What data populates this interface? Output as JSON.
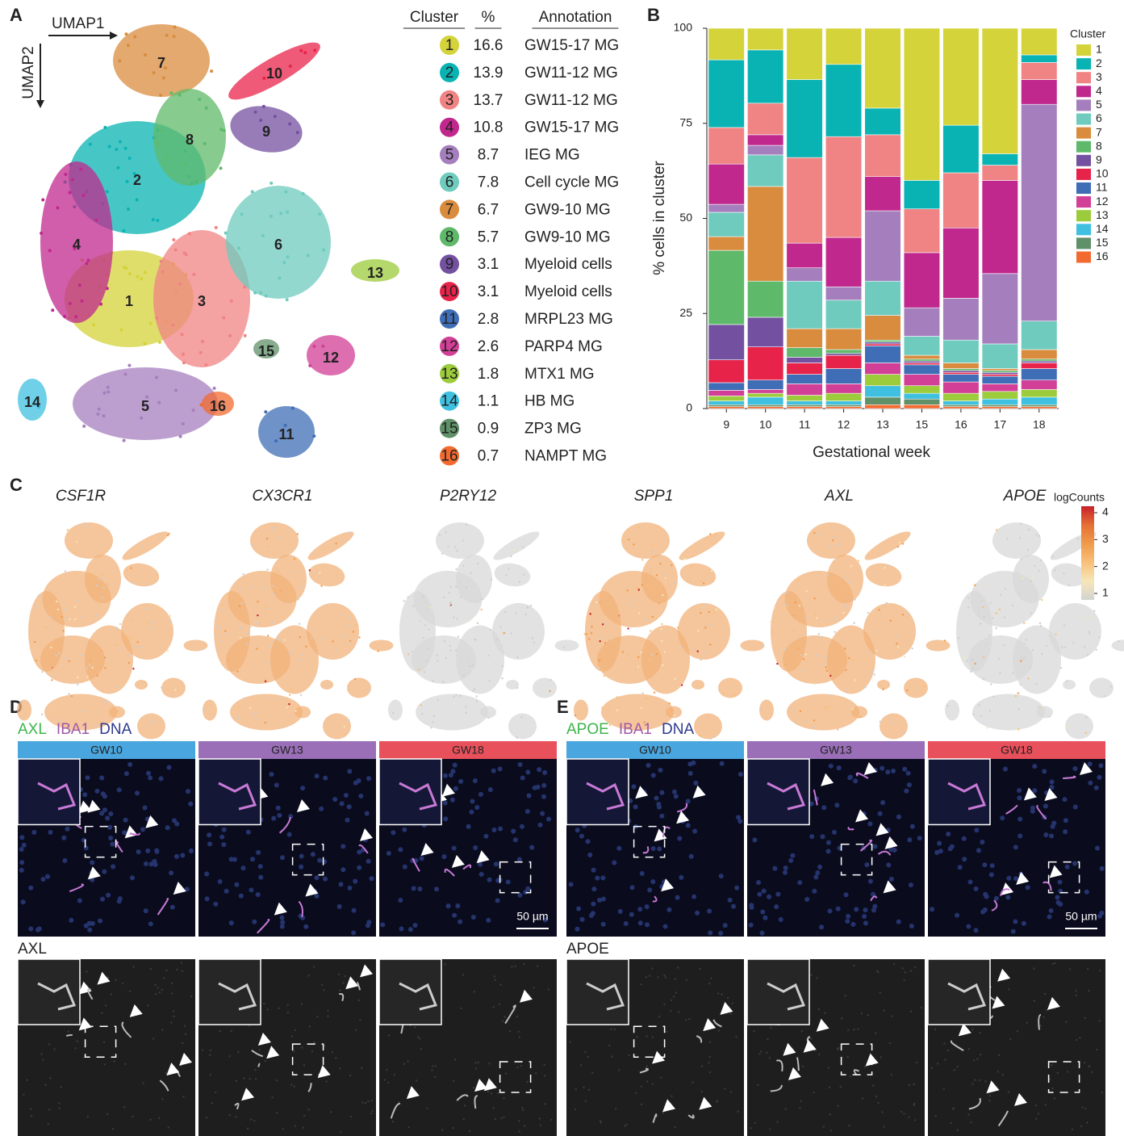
{
  "panel_labels": [
    "A",
    "B",
    "C",
    "D",
    "E"
  ],
  "umap": {
    "axis_x": "UMAP1",
    "axis_y": "UMAP2",
    "cluster_labels": [
      "7",
      "10",
      "9",
      "8",
      "2",
      "4",
      "6",
      "13",
      "1",
      "3",
      "15",
      "12",
      "5",
      "16",
      "14",
      "11"
    ]
  },
  "cluster_table": {
    "headers": [
      "Cluster",
      "%",
      "Annotation"
    ],
    "rows": [
      [
        1,
        16.6,
        "GW15-17 MG"
      ],
      [
        2,
        13.9,
        "GW11-12 MG"
      ],
      [
        3,
        13.7,
        "GW11-12 MG"
      ],
      [
        4,
        10.8,
        "GW15-17 MG"
      ],
      [
        5,
        8.7,
        "IEG MG"
      ],
      [
        6,
        7.8,
        "Cell cycle MG"
      ],
      [
        7,
        6.7,
        "GW9-10 MG"
      ],
      [
        8,
        5.7,
        "GW9-10 MG"
      ],
      [
        9,
        3.1,
        "Myeloid cells"
      ],
      [
        10,
        3.1,
        "Myeloid cells"
      ],
      [
        11,
        2.8,
        "MRPL23 MG"
      ],
      [
        12,
        2.6,
        "PARP4 MG"
      ],
      [
        13,
        1.8,
        "MTX1 MG"
      ],
      [
        14,
        1.1,
        "HB MG"
      ],
      [
        15,
        0.9,
        "ZP3 MG"
      ],
      [
        16,
        0.7,
        "NAMPT MG"
      ]
    ]
  },
  "chart_data": {
    "type": "stacked_bar",
    "x_label": "Gestational week",
    "y_label": "% cells in cluster",
    "legend_title": "Cluster",
    "legend_position": "right",
    "categories": [
      "9",
      "10",
      "11",
      "12",
      "13",
      "15",
      "16",
      "17",
      "18"
    ],
    "ylim": [
      0,
      100
    ],
    "yticks": [
      0,
      25,
      50,
      75,
      100
    ],
    "series": [
      {
        "name": "1",
        "color": "#d4d33a",
        "values": [
          8.3,
          5.7,
          13.5,
          9.5,
          21,
          40,
          25.5,
          33,
          7
        ]
      },
      {
        "name": "2",
        "color": "#0ab3b3",
        "values": [
          17.8,
          14,
          20.5,
          19,
          7,
          7.5,
          12.5,
          3,
          2
        ]
      },
      {
        "name": "3",
        "color": "#f08383",
        "values": [
          9.6,
          8.3,
          22.5,
          26.5,
          11,
          11.5,
          14.5,
          4,
          4.5
        ]
      },
      {
        "name": "4",
        "color": "#c0288e",
        "values": [
          10.6,
          2.8,
          6.5,
          13,
          9,
          14.5,
          18.5,
          24.5,
          6.5
        ]
      },
      {
        "name": "5",
        "color": "#a57fbd",
        "values": [
          2.1,
          2.5,
          3.5,
          3.5,
          18.5,
          7.5,
          11,
          18.5,
          57
        ]
      },
      {
        "name": "6",
        "color": "#6ecbbd",
        "values": [
          6.4,
          8.3,
          12.5,
          7.5,
          9,
          5,
          6,
          6.5,
          7.5
        ]
      },
      {
        "name": "7",
        "color": "#d98c3e",
        "values": [
          3.6,
          24.9,
          5,
          5.5,
          6.5,
          1,
          1.5,
          0.5,
          2.5
        ]
      },
      {
        "name": "8",
        "color": "#5fb96a",
        "values": [
          19.5,
          9.5,
          2.5,
          1,
          0.5,
          0.5,
          0.5,
          0.5,
          0.5
        ]
      },
      {
        "name": "9",
        "color": "#7450a0",
        "values": [
          9.3,
          7.8,
          1.5,
          0.5,
          0.5,
          0.5,
          0.5,
          0.5,
          0.5
        ]
      },
      {
        "name": "10",
        "color": "#e8234a",
        "values": [
          6,
          8.7,
          3,
          3.5,
          0.5,
          0.5,
          0.5,
          0.5,
          1.5
        ]
      },
      {
        "name": "11",
        "color": "#3f6db6",
        "values": [
          2,
          2.5,
          2.5,
          4,
          4.5,
          2.5,
          2,
          2,
          3
        ]
      },
      {
        "name": "12",
        "color": "#d23f96",
        "values": [
          1.5,
          1,
          3,
          2.5,
          3,
          3,
          3,
          2,
          2.5
        ]
      },
      {
        "name": "13",
        "color": "#9ccb3b",
        "values": [
          1.3,
          1,
          1.5,
          2,
          3,
          2,
          2,
          2,
          2
        ]
      },
      {
        "name": "14",
        "color": "#3fc0e0",
        "values": [
          1,
          2,
          1,
          1,
          3,
          1.5,
          1,
          1.5,
          2
        ]
      },
      {
        "name": "15",
        "color": "#5f9068",
        "values": [
          0.5,
          0.5,
          0.5,
          0.5,
          2,
          1.5,
          0.5,
          0.5,
          0.5
        ]
      },
      {
        "name": "16",
        "color": "#f26a30",
        "values": [
          0.5,
          0.5,
          0.5,
          0.5,
          1,
          1,
          0.5,
          0.5,
          0.5
        ]
      }
    ]
  },
  "feature_plots": {
    "genes": [
      "CSF1R",
      "CX3CR1",
      "P2RY12",
      "SPP1",
      "AXL",
      "APOE"
    ],
    "colorbar": {
      "title": "logCounts",
      "ticks": [
        1,
        2,
        3,
        4
      ]
    }
  },
  "panel_d": {
    "channels": [
      "AXL",
      "IBA1",
      "DNA"
    ],
    "stages": [
      "GW10",
      "GW13",
      "GW18"
    ],
    "scale_bar": "50 µm",
    "single_channel": "AXL"
  },
  "panel_e": {
    "channels": [
      "APOE",
      "IBA1",
      "DNA"
    ],
    "stages": [
      "GW10",
      "GW13",
      "GW18"
    ],
    "scale_bar": "50 µm",
    "single_channel": "APOE"
  }
}
